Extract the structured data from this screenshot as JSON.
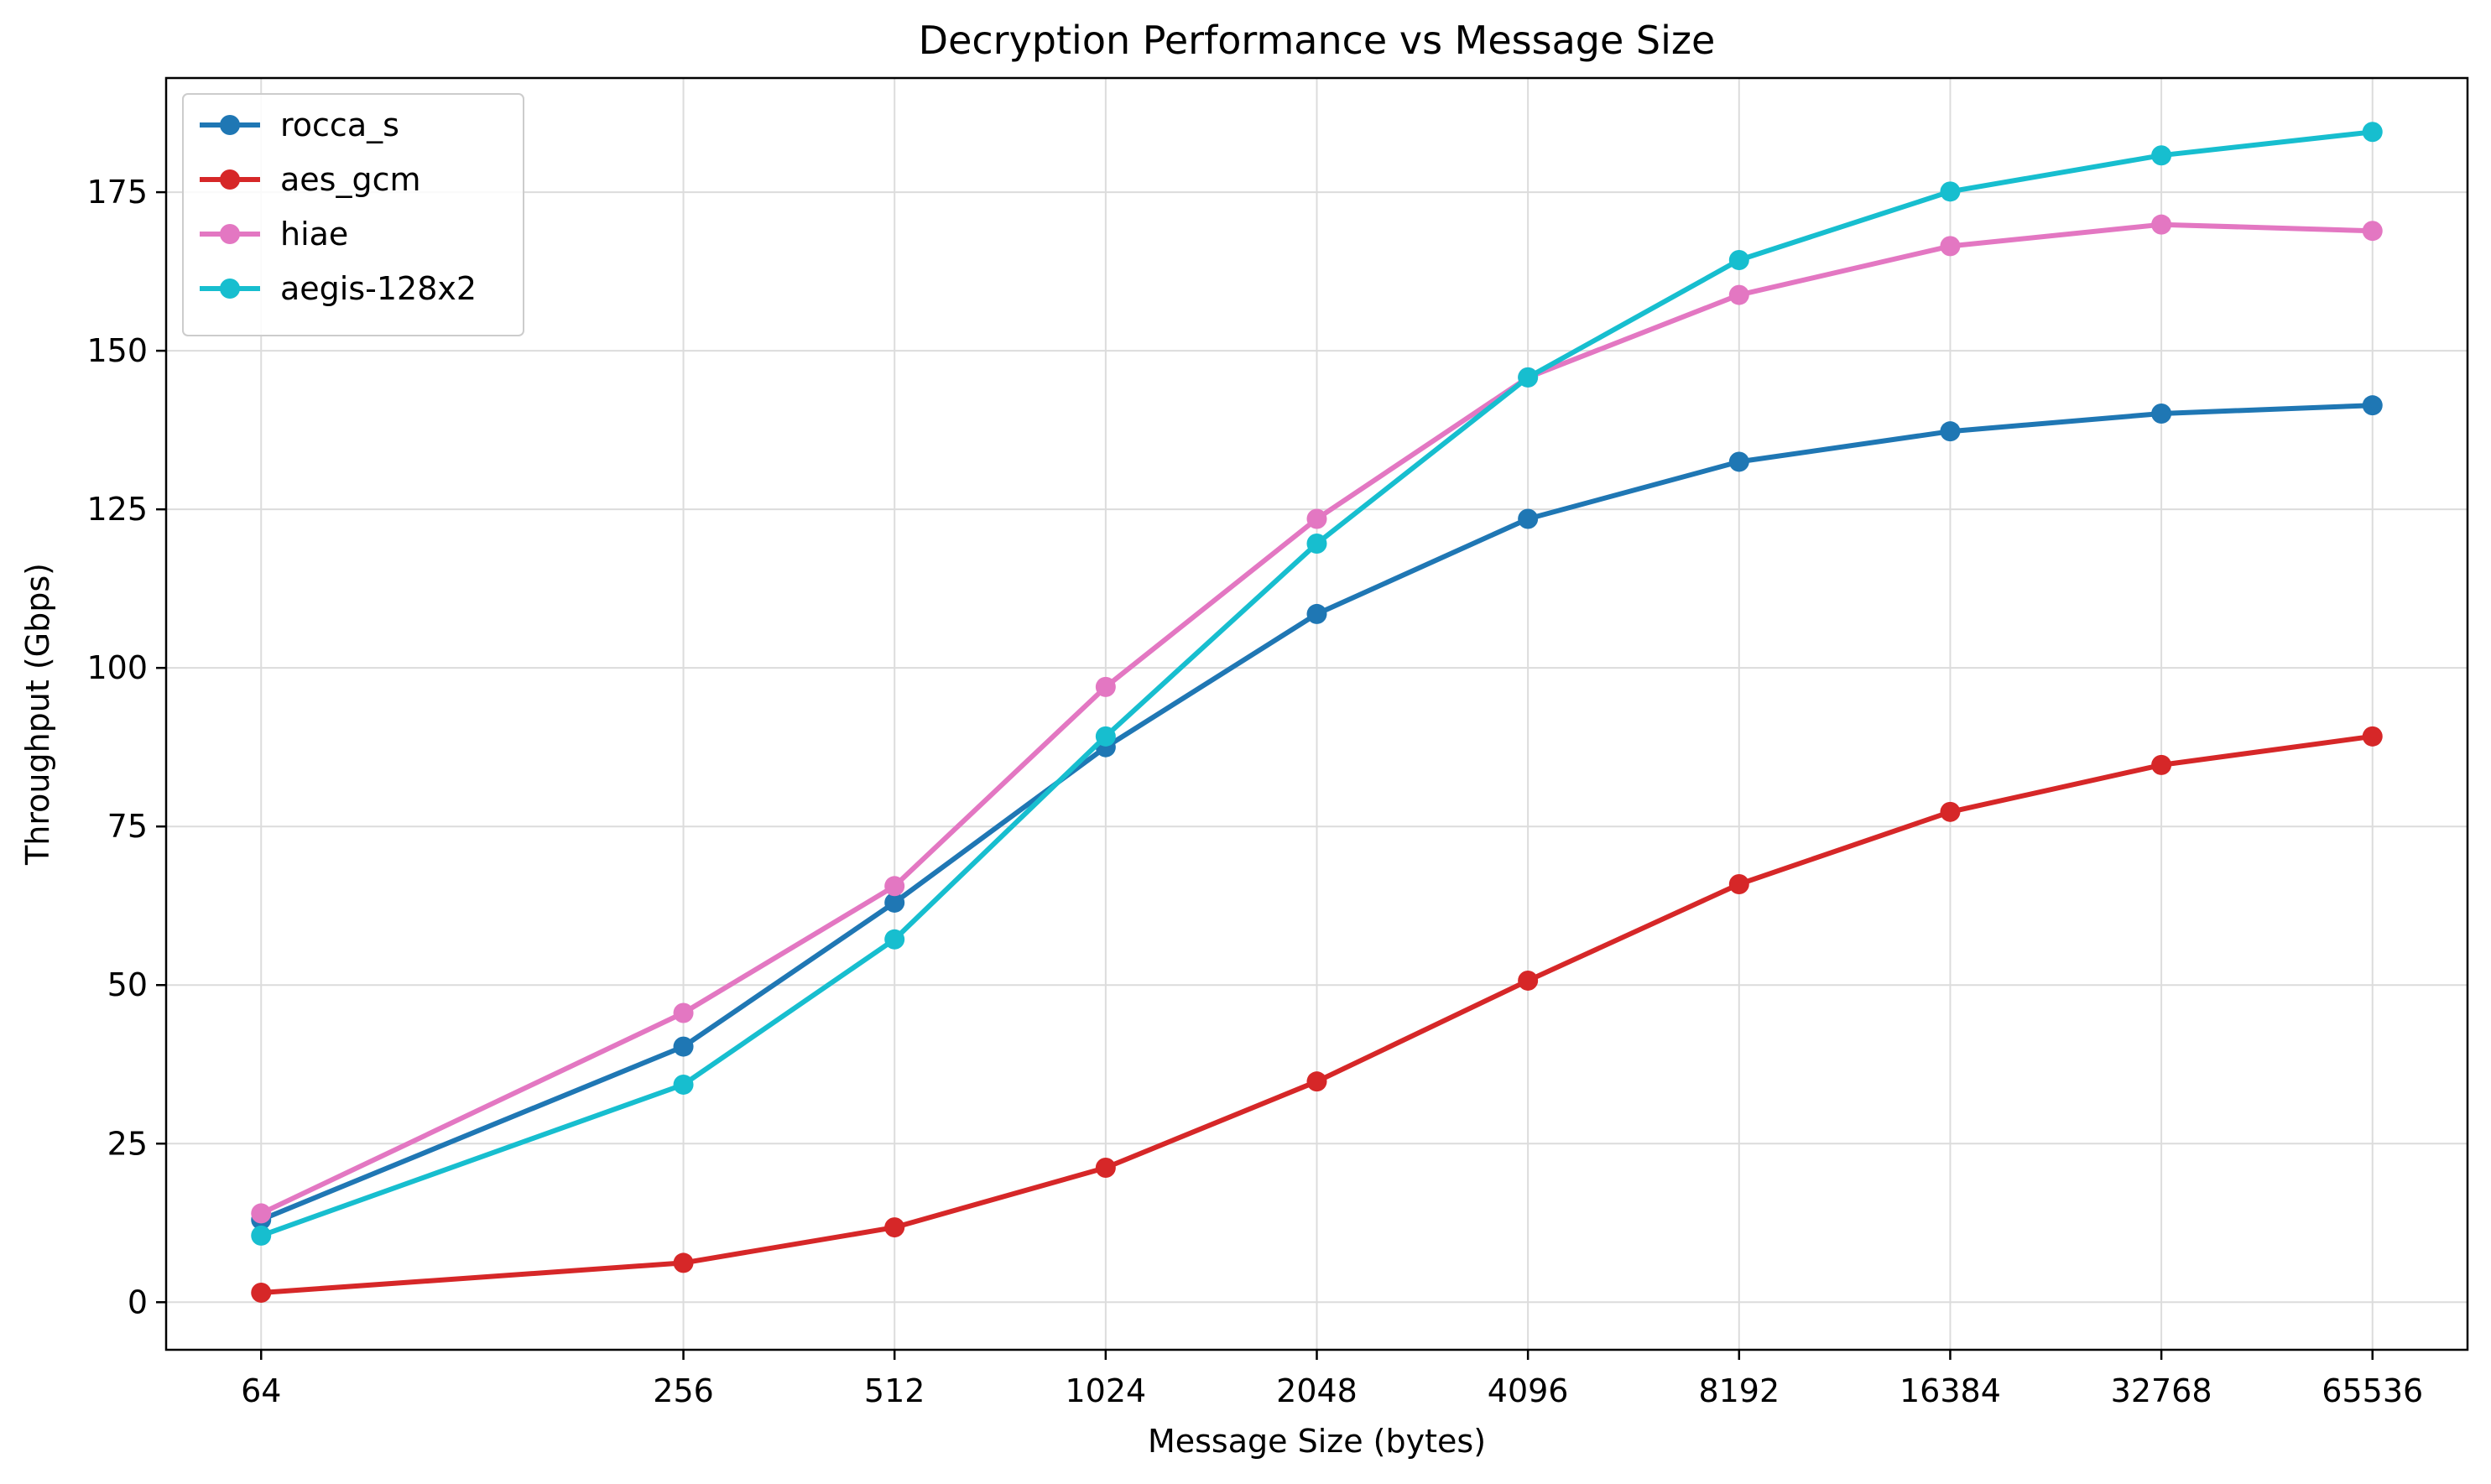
{
  "chart_data": {
    "type": "line",
    "title": "Decryption Performance vs Message Size",
    "xlabel": "Message Size (bytes)",
    "ylabel": "Throughput (Gbps)",
    "x_scale": "log2",
    "x": [
      64,
      256,
      512,
      1024,
      2048,
      4096,
      8192,
      16384,
      32768,
      65536
    ],
    "x_tick_labels": [
      "64",
      "256",
      "512",
      "1024",
      "2048",
      "4096",
      "8192",
      "16384",
      "32768",
      "65536"
    ],
    "y_ticks": [
      0,
      25,
      50,
      75,
      100,
      125,
      150,
      175
    ],
    "y_tick_labels": [
      "0",
      "25",
      "50",
      "75",
      "100",
      "125",
      "150",
      "175"
    ],
    "ylim": [
      -7.5,
      193
    ],
    "grid": true,
    "legend_position": "top-left",
    "series": [
      {
        "name": "rocca_s",
        "color": "#1f77b4",
        "values": [
          13.0,
          40.3,
          63.0,
          87.5,
          108.5,
          123.5,
          132.5,
          137.3,
          140.1,
          141.4
        ]
      },
      {
        "name": "aes_gcm",
        "color": "#d62728",
        "values": [
          1.5,
          6.2,
          11.8,
          21.2,
          34.8,
          50.7,
          65.9,
          77.3,
          84.7,
          89.2
        ]
      },
      {
        "name": "hiae",
        "color": "#e377c2",
        "values": [
          14.0,
          45.6,
          65.6,
          97.0,
          123.5,
          145.8,
          158.8,
          166.5,
          169.9,
          168.9
        ]
      },
      {
        "name": "aegis-128x2",
        "color": "#17becf",
        "values": [
          10.5,
          34.3,
          57.2,
          89.2,
          119.6,
          145.8,
          164.3,
          175.1,
          180.8,
          184.5
        ]
      }
    ]
  }
}
